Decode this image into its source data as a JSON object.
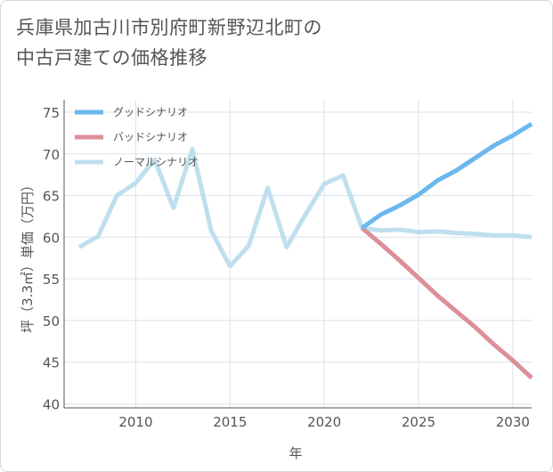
{
  "title": {
    "line1": "兵庫県加古川市別府町新野辺北町の",
    "line2": "中古戸建ての価格推移"
  },
  "colors": {
    "good": "#6bb8ee",
    "bad": "#dc8f97",
    "normal": "#bfdfee",
    "grid": "#d9e3ea",
    "axis": "#555555"
  },
  "chart_data": {
    "type": "line",
    "xlabel": "年",
    "ylabel": "坪（3.3㎡）単価（万円）",
    "xlim": [
      2006.2,
      2031
    ],
    "ylim": [
      39.5,
      76.5
    ],
    "x_ticks": [
      2010,
      2015,
      2020,
      2025,
      2030
    ],
    "y_ticks": [
      40,
      45,
      50,
      55,
      60,
      65,
      70,
      75
    ],
    "grid": true,
    "legend_position": "top-left",
    "series": [
      {
        "name": "グッドシナリオ",
        "color": "#6bb8ee",
        "x": [
          2022,
          2023,
          2024,
          2025,
          2026,
          2027,
          2028,
          2029,
          2030,
          2031
        ],
        "y": [
          61.1,
          62.7,
          63.8,
          65.1,
          66.8,
          68.0,
          69.5,
          71.0,
          72.2,
          73.6
        ]
      },
      {
        "name": "バッドシナリオ",
        "color": "#dc8f97",
        "x": [
          2022,
          2023,
          2024,
          2025,
          2026,
          2027,
          2028,
          2029,
          2030,
          2031
        ],
        "y": [
          61.1,
          59.2,
          57.2,
          55.1,
          53.0,
          51.1,
          49.2,
          47.1,
          45.2,
          43.1
        ]
      },
      {
        "name": "ノーマルシナリオ",
        "color": "#bfdfee",
        "x": [
          2007,
          2008,
          2009,
          2010,
          2011,
          2012,
          2013,
          2014,
          2015,
          2016,
          2017,
          2018,
          2019,
          2020,
          2021,
          2022,
          2023,
          2024,
          2025,
          2026,
          2027,
          2028,
          2029,
          2030,
          2031
        ],
        "y": [
          58.8,
          60.1,
          65.0,
          66.5,
          69.3,
          63.5,
          70.6,
          60.8,
          56.5,
          59.0,
          65.9,
          58.8,
          62.7,
          66.4,
          67.4,
          61.1,
          60.8,
          60.9,
          60.6,
          60.7,
          60.5,
          60.4,
          60.2,
          60.2,
          60.0
        ]
      }
    ]
  }
}
